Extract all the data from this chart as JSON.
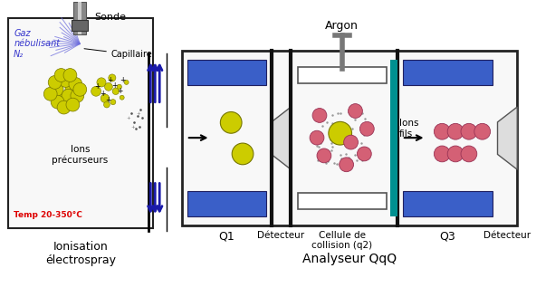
{
  "background_color": "#ffffff",
  "ionisation_label": "Ionisation\nélectrospray",
  "analyseur_label": "Analyseur QqQ",
  "sonde_label": "Sonde",
  "capillaire_label": "Capillaire",
  "gaz_label": "Gaz\nnébulisant\nN₂",
  "ions_precurseurs_label": "Ions\nprécurseurs",
  "temp_label": "Temp 20-350°C",
  "argon_label": "Argon",
  "ions_fils_label": "Ions\nfils",
  "q1_label": "Q1",
  "q3_label": "Q3",
  "detecteur1_label": "Détecteur",
  "detecteur2_label": "Détecteur",
  "cellule_label": "Cellule de\ncollision (q2)",
  "yellow_color": "#cccc00",
  "pink_color": "#d46075",
  "blue_rect_color": "#3a5fc8",
  "teal_color": "#009090",
  "arrow_color": "#1a1aaa",
  "gaz_text_color": "#3535cc",
  "temp_text_color": "#dd0000"
}
